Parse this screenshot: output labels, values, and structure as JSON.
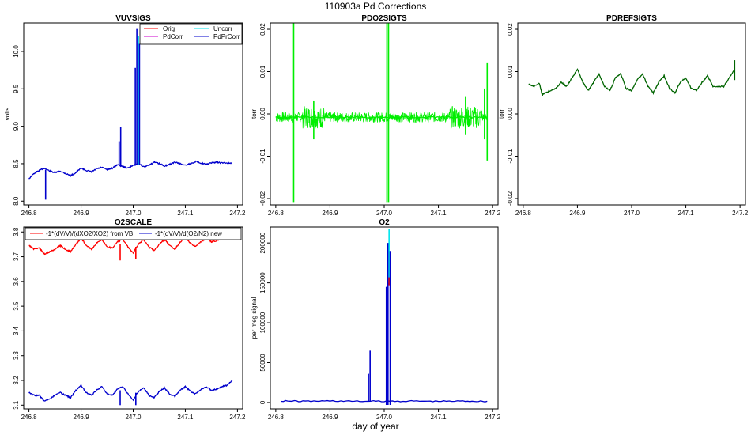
{
  "figure": {
    "title": "110903a   Pd Corrections",
    "xlabel": "day of year"
  },
  "chart_data": [
    {
      "id": "vuvsigs",
      "type": "line",
      "title": "VUVSIGS",
      "xlabel": "",
      "ylabel": "volts",
      "xlim": [
        246.79,
        247.21
      ],
      "ylim": [
        7.95,
        10.38
      ],
      "xticks": [
        246.8,
        246.9,
        247.0,
        247.1,
        247.2
      ],
      "xtick_labels": [
        "246.8",
        "246.9",
        "247.0",
        "247.1",
        "247.2"
      ],
      "yticks": [
        8.0,
        8.5,
        9.0,
        9.5,
        10.0
      ],
      "ytick_labels": [
        "8.0",
        "8.5",
        "9.0",
        "9.5",
        "10.0"
      ],
      "legend": {
        "position": "top-right",
        "entries": [
          {
            "name": "Orig",
            "color": "#ff0000"
          },
          {
            "name": "Uncorr",
            "color": "#00e5ee"
          },
          {
            "name": "PdCorr",
            "color": "#cc00cc"
          },
          {
            "name": "PdPrCorr",
            "color": "#0000cc"
          }
        ]
      },
      "series": [
        {
          "name": "PdPrCorr",
          "color": "#0000cc",
          "x": [
            246.8,
            246.81,
            246.82,
            246.83,
            246.84,
            246.85,
            246.86,
            246.87,
            246.88,
            246.89,
            246.9,
            246.91,
            246.92,
            246.93,
            246.94,
            246.95,
            246.96,
            246.97,
            246.98,
            246.99,
            247.0,
            247.01,
            247.02,
            247.03,
            247.04,
            247.05,
            247.06,
            247.07,
            247.08,
            247.09,
            247.1,
            247.11,
            247.12,
            247.13,
            247.14,
            247.15,
            247.16,
            247.17,
            247.18,
            247.19
          ],
          "y": [
            8.3,
            8.37,
            8.41,
            8.44,
            8.4,
            8.38,
            8.4,
            8.37,
            8.34,
            8.38,
            8.44,
            8.41,
            8.39,
            8.43,
            8.45,
            8.42,
            8.44,
            8.49,
            8.46,
            8.44,
            8.48,
            8.5,
            8.46,
            8.48,
            8.52,
            8.5,
            8.47,
            8.49,
            8.52,
            8.5,
            8.48,
            8.5,
            8.53,
            8.51,
            8.49,
            8.51,
            8.52,
            8.51,
            8.51,
            8.5
          ]
        }
      ],
      "spikes": [
        {
          "x": 246.832,
          "y0": 8.42,
          "y1": 8.02,
          "color": "#0000cc"
        },
        {
          "x": 246.973,
          "y0": 8.48,
          "y1": 8.8,
          "color": "#0000cc"
        },
        {
          "x": 246.976,
          "y0": 8.47,
          "y1": 8.99,
          "color": "#0000cc"
        },
        {
          "x": 247.004,
          "y0": 8.48,
          "y1": 9.78,
          "color": "#0000cc"
        },
        {
          "x": 247.007,
          "y0": 8.48,
          "y1": 10.3,
          "color": "#0000cc"
        },
        {
          "x": 247.01,
          "y0": 8.48,
          "y1": 10.2,
          "color": "#00e5ee"
        },
        {
          "x": 247.012,
          "y0": 8.48,
          "y1": 10.1,
          "color": "#0000cc"
        }
      ]
    },
    {
      "id": "pdo2sigts",
      "type": "line",
      "title": "PDO2SIGTS",
      "xlabel": "",
      "ylabel": "torr",
      "xlim": [
        246.79,
        247.21
      ],
      "ylim": [
        -0.0215,
        0.0215
      ],
      "xticks": [
        246.8,
        246.9,
        247.0,
        247.1,
        247.2
      ],
      "xtick_labels": [
        "246.8",
        "246.9",
        "247.0",
        "247.1",
        "247.2"
      ],
      "yticks": [
        -0.02,
        -0.01,
        0.0,
        0.01,
        0.02
      ],
      "ytick_labels": [
        "-0.02",
        "-0.01",
        "0.00",
        "0.01",
        "0.02"
      ],
      "series": [
        {
          "name": "",
          "color": "#00ee00",
          "x": [
            246.8,
            246.82,
            246.84,
            246.86,
            246.88,
            246.9,
            246.92,
            246.94,
            246.96,
            246.98,
            247.0,
            247.02,
            247.04,
            247.06,
            247.08,
            247.1,
            247.12,
            247.14,
            247.16,
            247.18,
            247.19
          ],
          "y": [
            -0.0008,
            -0.0009,
            -0.0007,
            -0.0008,
            -0.0008,
            -0.0008,
            -0.0007,
            -0.0008,
            -0.0008,
            -0.0008,
            -0.0008,
            -0.0008,
            -0.0007,
            -0.0008,
            -0.0008,
            -0.0008,
            -0.0008,
            -0.0008,
            -0.0008,
            -0.0008,
            -0.0008
          ]
        }
      ],
      "noise": {
        "x0": 246.8,
        "x1": 247.19,
        "amplitude": 0.0012,
        "color": "#00ee00"
      },
      "spikes": [
        {
          "x": 246.833,
          "y0": -0.021,
          "y1": 0.0215,
          "color": "#00ee00"
        },
        {
          "x": 247.005,
          "y0": -0.021,
          "y1": 0.0215,
          "color": "#00ee00"
        },
        {
          "x": 247.008,
          "y0": -0.021,
          "y1": 0.0215,
          "color": "#00ee00"
        },
        {
          "x": 247.19,
          "y0": -0.011,
          "y1": 0.012,
          "color": "#00ee00"
        },
        {
          "x": 247.185,
          "y0": -0.006,
          "y1": 0.006,
          "color": "#00ee00"
        },
        {
          "x": 246.87,
          "y0": -0.006,
          "y1": 0.003,
          "color": "#00ee00"
        },
        {
          "x": 247.15,
          "y0": -0.005,
          "y1": 0.004,
          "color": "#00ee00"
        }
      ]
    },
    {
      "id": "pdrefsigts",
      "type": "line",
      "title": "PDREFSIGTS",
      "xlabel": "",
      "ylabel": "torr",
      "xlim": [
        246.79,
        247.21
      ],
      "ylim": [
        -0.0215,
        0.0215
      ],
      "xticks": [
        246.8,
        246.9,
        247.0,
        247.1,
        247.2
      ],
      "xtick_labels": [
        "246.8",
        "246.9",
        "247.0",
        "247.1",
        "247.2"
      ],
      "yticks": [
        -0.02,
        -0.01,
        0.0,
        0.01,
        0.02
      ],
      "ytick_labels": [
        "-0.02",
        "-0.01",
        "0.00",
        "0.01",
        "0.02"
      ],
      "series": [
        {
          "name": "",
          "color": "#006400",
          "x": [
            246.81,
            246.82,
            246.83,
            246.835,
            246.84,
            246.85,
            246.86,
            246.87,
            246.88,
            246.89,
            246.9,
            246.91,
            246.92,
            246.93,
            246.94,
            246.95,
            246.96,
            246.97,
            246.98,
            246.99,
            247.0,
            247.01,
            247.02,
            247.03,
            247.04,
            247.05,
            247.06,
            247.07,
            247.08,
            247.09,
            247.1,
            247.11,
            247.12,
            247.13,
            247.14,
            247.15,
            247.16,
            247.17,
            247.18,
            247.19
          ],
          "y": [
            0.007,
            0.0065,
            0.0072,
            0.0045,
            0.005,
            0.0055,
            0.006,
            0.0075,
            0.0065,
            0.0085,
            0.0105,
            0.0075,
            0.0055,
            0.0075,
            0.0095,
            0.0065,
            0.0055,
            0.0085,
            0.0095,
            0.006,
            0.0055,
            0.008,
            0.0095,
            0.0065,
            0.005,
            0.0075,
            0.009,
            0.006,
            0.005,
            0.0075,
            0.0085,
            0.006,
            0.0055,
            0.0075,
            0.009,
            0.0065,
            0.0065,
            0.0065,
            0.0085,
            0.0105
          ]
        }
      ],
      "spikes": [
        {
          "x": 247.19,
          "y0": 0.008,
          "y1": 0.0127,
          "color": "#006400"
        }
      ]
    },
    {
      "id": "o2scale",
      "type": "line",
      "title": "O2SCALE",
      "xlabel": "",
      "ylabel": "",
      "xlim": [
        246.79,
        247.21
      ],
      "ylim": [
        3.085,
        3.82
      ],
      "xticks": [
        246.8,
        246.9,
        247.0,
        247.1,
        247.2
      ],
      "xtick_labels": [
        "246.8",
        "246.9",
        "247.0",
        "247.1",
        "247.2"
      ],
      "yticks": [
        3.1,
        3.2,
        3.3,
        3.4,
        3.5,
        3.6,
        3.7,
        3.8
      ],
      "ytick_labels": [
        "3.1",
        "3.2",
        "3.3",
        "3.4",
        "3.5",
        "3.6",
        "3.7",
        "3.8"
      ],
      "legend": {
        "position": "top",
        "entries": [
          {
            "name": "-1*(dV/V)/(dXO2/XO2) from VB",
            "color": "#ff0000"
          },
          {
            "name": "-1*(dV/V)/d(O2/N2) new",
            "color": "#0000cc"
          }
        ]
      },
      "series": [
        {
          "name": "-1*(dV/V)/(dXO2/XO2) from VB",
          "color": "#ff0000",
          "x": [
            246.8,
            246.81,
            246.82,
            246.83,
            246.84,
            246.85,
            246.86,
            246.87,
            246.88,
            246.89,
            246.9,
            246.91,
            246.92,
            246.93,
            246.94,
            246.95,
            246.96,
            246.97,
            246.98,
            246.99,
            247.0,
            247.01,
            247.02,
            247.03,
            247.04,
            247.05,
            247.06,
            247.07,
            247.08,
            247.09,
            247.1,
            247.11,
            247.12,
            247.13,
            247.14,
            247.15,
            247.16,
            247.17,
            247.18,
            247.19
          ],
          "y": [
            3.745,
            3.73,
            3.735,
            3.71,
            3.72,
            3.73,
            3.745,
            3.73,
            3.72,
            3.75,
            3.775,
            3.745,
            3.73,
            3.755,
            3.77,
            3.74,
            3.735,
            3.76,
            3.77,
            3.74,
            3.715,
            3.75,
            3.77,
            3.74,
            3.725,
            3.75,
            3.77,
            3.745,
            3.73,
            3.76,
            3.775,
            3.755,
            3.74,
            3.76,
            3.775,
            3.76,
            3.765,
            3.775,
            3.78,
            3.785
          ]
        },
        {
          "name": "-1*(dV/V)/d(O2/N2) new",
          "color": "#0000cc",
          "x": [
            246.8,
            246.81,
            246.82,
            246.83,
            246.84,
            246.85,
            246.86,
            246.87,
            246.88,
            246.89,
            246.9,
            246.91,
            246.92,
            246.93,
            246.94,
            246.95,
            246.96,
            246.97,
            246.98,
            246.99,
            247.0,
            247.01,
            247.02,
            247.03,
            247.04,
            247.05,
            247.06,
            247.07,
            247.08,
            247.09,
            247.1,
            247.11,
            247.12,
            247.13,
            247.14,
            247.15,
            247.16,
            247.17,
            247.18,
            247.19
          ],
          "y": [
            3.15,
            3.14,
            3.14,
            3.115,
            3.125,
            3.14,
            3.15,
            3.14,
            3.13,
            3.16,
            3.18,
            3.15,
            3.14,
            3.16,
            3.175,
            3.145,
            3.14,
            3.165,
            3.175,
            3.145,
            3.12,
            3.155,
            3.17,
            3.14,
            3.13,
            3.155,
            3.17,
            3.145,
            3.135,
            3.16,
            3.175,
            3.155,
            3.145,
            3.165,
            3.175,
            3.16,
            3.165,
            3.175,
            3.18,
            3.2
          ]
        }
      ],
      "spikes": [
        {
          "x": 246.975,
          "y0": 3.75,
          "y1": 3.685,
          "color": "#ff0000"
        },
        {
          "x": 247.005,
          "y0": 3.74,
          "y1": 3.69,
          "color": "#ff0000"
        },
        {
          "x": 246.975,
          "y0": 3.16,
          "y1": 3.1,
          "color": "#0000cc"
        },
        {
          "x": 247.005,
          "y0": 3.15,
          "y1": 3.1,
          "color": "#0000cc"
        }
      ]
    },
    {
      "id": "o2",
      "type": "line",
      "title": "O2",
      "xlabel": "",
      "ylabel": "per meg signal",
      "xlim": [
        246.79,
        247.21
      ],
      "ylim": [
        -8000,
        220000
      ],
      "xticks": [
        246.8,
        246.9,
        247.0,
        247.1,
        247.2
      ],
      "xtick_labels": [
        "246.8",
        "246.9",
        "247.0",
        "247.1",
        "247.2"
      ],
      "yticks": [
        0,
        50000,
        100000,
        150000,
        200000
      ],
      "ytick_labels": [
        "0",
        "50000",
        "100000",
        "150000",
        "200000"
      ],
      "series": [
        {
          "name": "",
          "color": "#0000cc",
          "x": [
            246.81,
            246.85,
            246.9,
            246.95,
            247.0,
            247.05,
            247.1,
            247.15,
            247.19
          ],
          "y": [
            2000,
            1500,
            2000,
            1500,
            1500,
            1800,
            1500,
            1800,
            1500
          ]
        }
      ],
      "spikes": [
        {
          "x": 246.971,
          "y0": 1500,
          "y1": 36000,
          "color": "#0000cc"
        },
        {
          "x": 246.974,
          "y0": 1500,
          "y1": 65000,
          "color": "#0000cc"
        },
        {
          "x": 247.004,
          "y0": -3000,
          "y1": 145000,
          "color": "#0000cc"
        },
        {
          "x": 247.007,
          "y0": -3000,
          "y1": 200000,
          "color": "#0000cc"
        },
        {
          "x": 247.009,
          "y0": 150000,
          "y1": 218000,
          "color": "#00e5ee"
        },
        {
          "x": 247.009,
          "y0": 147000,
          "y1": 157000,
          "color": "#ff0000"
        },
        {
          "x": 247.011,
          "y0": -3000,
          "y1": 190000,
          "color": "#0000cc"
        }
      ]
    }
  ]
}
